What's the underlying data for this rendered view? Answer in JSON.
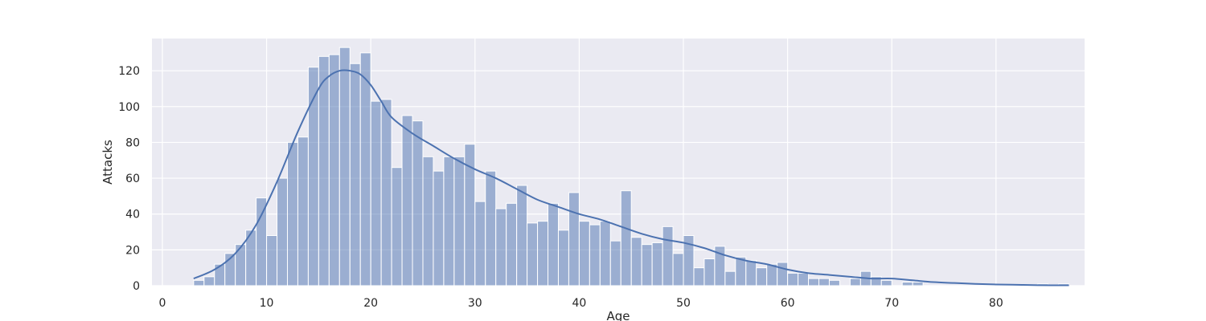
{
  "chart_data": {
    "type": "bar",
    "title": "",
    "xlabel": "Age",
    "ylabel": "Attacks",
    "xlim": [
      -1,
      88.5
    ],
    "ylim": [
      0,
      138
    ],
    "xticks": [
      0,
      10,
      20,
      30,
      40,
      50,
      60,
      70,
      80
    ],
    "yticks": [
      0,
      20,
      40,
      60,
      80,
      100,
      120
    ],
    "grid": true,
    "colors": {
      "background": "#eaeaf2",
      "grid": "#ffffff",
      "bar_fill": "#4c72b0",
      "bar_fill_opacity": 0.5,
      "bar_edge": "#ffffff",
      "kde_line": "#4c72b0"
    },
    "histogram": {
      "bin_start": 3,
      "bin_width": 1,
      "values": [
        3,
        5,
        12,
        18,
        23,
        31,
        49,
        28,
        60,
        80,
        83,
        122,
        128,
        129,
        133,
        124,
        130,
        103,
        104,
        66,
        95,
        92,
        72,
        64,
        72,
        72,
        79,
        47,
        64,
        43,
        46,
        56,
        35,
        36,
        46,
        31,
        52,
        36,
        34,
        36,
        25,
        53,
        27,
        23,
        24,
        33,
        18,
        28,
        10,
        15,
        22,
        8,
        16,
        14,
        10,
        12,
        13,
        7,
        7,
        4,
        4,
        3,
        0,
        4,
        8,
        5,
        3,
        0,
        2,
        2,
        0,
        0,
        0,
        0,
        0,
        0,
        0,
        0,
        0,
        0,
        0,
        1,
        0,
        1
      ]
    },
    "kde": {
      "x": [
        3,
        5,
        7,
        9,
        11,
        13,
        15,
        16,
        17,
        18,
        19,
        20,
        21,
        22,
        24,
        26,
        28,
        30,
        32,
        34,
        36,
        38,
        40,
        42,
        44,
        46,
        48,
        50,
        52,
        54,
        56,
        58,
        60,
        62,
        64,
        66,
        68,
        70,
        72,
        74,
        76,
        78,
        80,
        82,
        84,
        87
      ],
      "y": [
        4,
        9,
        18,
        34,
        58,
        86,
        110,
        117,
        120,
        120,
        118,
        112,
        103,
        94,
        85,
        78,
        71,
        65,
        60,
        54,
        48,
        44,
        40,
        37,
        33,
        29,
        26,
        24,
        21,
        17,
        14,
        12,
        9,
        7,
        6,
        5,
        4,
        4,
        3,
        2,
        1.5,
        1,
        0.7,
        0.5,
        0.3,
        0.2
      ]
    }
  }
}
